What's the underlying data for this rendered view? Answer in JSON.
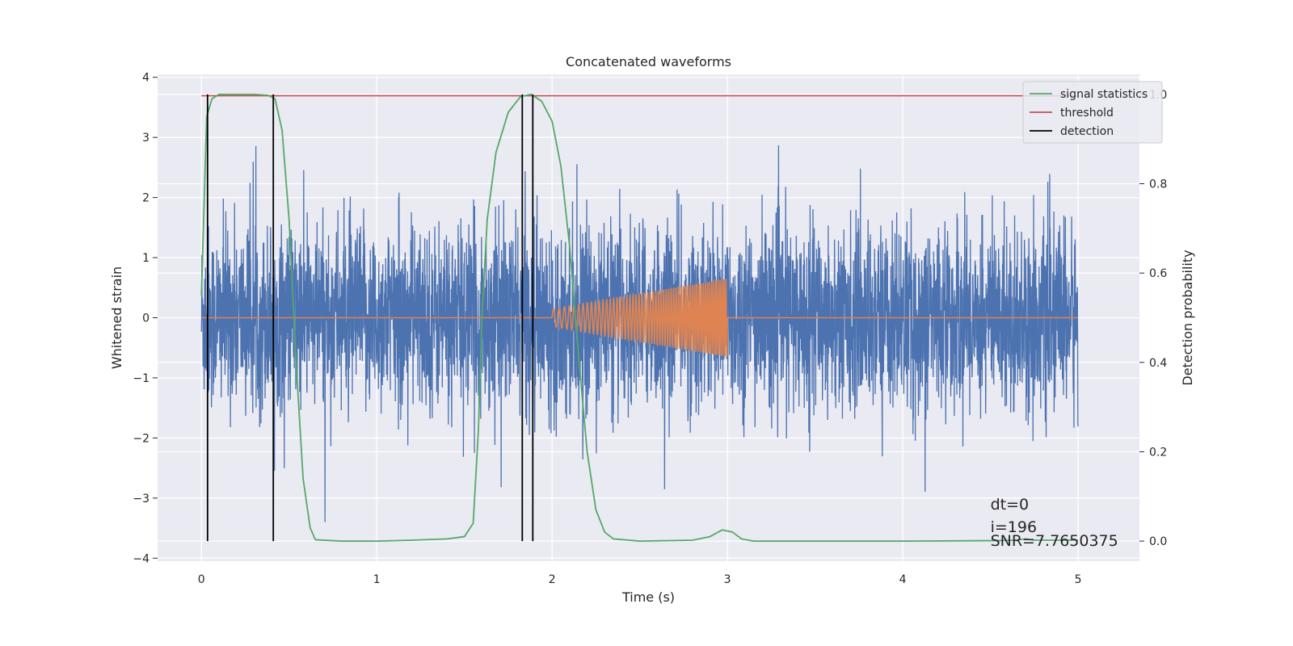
{
  "chart_data": {
    "type": "line",
    "title": "Concatenated waveforms",
    "xlabel": "Time (s)",
    "ylabel_left": "Whitened strain",
    "ylabel_right": "Detection probability",
    "xlim": [
      -0.25,
      5.35
    ],
    "ylim_left": [
      -4.05,
      4.05
    ],
    "ylim_right": [
      -0.045,
      1.045
    ],
    "x_ticks": [
      "0",
      "1",
      "2",
      "3",
      "4",
      "5"
    ],
    "y_left_ticks": [
      "4",
      "3",
      "2",
      "1",
      "0",
      "−1",
      "−2",
      "−3",
      "−4"
    ],
    "y_right_ticks": [
      "1.0",
      "0.8",
      "0.6",
      "0.4",
      "0.2",
      "0.0"
    ],
    "grid": true,
    "legend_position": "upper right",
    "colors": {
      "background": "#eaeaf2",
      "noise": "#4c72b0",
      "injected": "#dd8452",
      "signal_statistics": "#55a868",
      "threshold": "#c44e52",
      "detection": "#000000"
    },
    "series": [
      {
        "name": "",
        "axis": "left",
        "description_values": "whitened noise strain, amplitude ~ ±2.5, spikes to ±3.5, x from 0 to 5",
        "x_range": [
          0,
          5
        ],
        "amplitude_std": 0.75
      },
      {
        "name": "",
        "axis": "left",
        "kind": "chirp",
        "x_range": [
          2.0,
          3.0
        ],
        "amplitude_start": 0.15,
        "amplitude_end": 0.65
      },
      {
        "name": "signal statistics",
        "axis": "right",
        "x": [
          0,
          0.03,
          0.06,
          0.1,
          0.2,
          0.3,
          0.38,
          0.42,
          0.46,
          0.5,
          0.54,
          0.58,
          0.62,
          0.65,
          0.8,
          1.0,
          1.2,
          1.4,
          1.5,
          1.55,
          1.58,
          1.6,
          1.63,
          1.68,
          1.75,
          1.82,
          1.88,
          1.94,
          2.0,
          2.05,
          2.1,
          2.15,
          2.2,
          2.25,
          2.3,
          2.35,
          2.5,
          2.8,
          2.9,
          2.97,
          3.03,
          3.08,
          3.15,
          3.3,
          4.0,
          4.5,
          4.65,
          4.7,
          4.75,
          5.0
        ],
        "y": [
          0.55,
          0.95,
          0.99,
          1.0,
          1.0,
          1.0,
          0.998,
          0.99,
          0.92,
          0.72,
          0.4,
          0.14,
          0.03,
          0.003,
          0.0,
          0.0,
          0.002,
          0.005,
          0.01,
          0.04,
          0.25,
          0.5,
          0.72,
          0.87,
          0.96,
          0.995,
          1.0,
          0.985,
          0.94,
          0.84,
          0.66,
          0.42,
          0.2,
          0.07,
          0.02,
          0.005,
          0.0,
          0.002,
          0.01,
          0.025,
          0.02,
          0.005,
          0.0,
          0.0,
          0.0,
          0.001,
          0.002,
          0.005,
          0.002,
          0.002
        ]
      },
      {
        "name": "threshold",
        "axis": "right",
        "x": [
          0,
          5
        ],
        "y": [
          0.997,
          0.997
        ]
      },
      {
        "name": "detection",
        "axis": "right",
        "kind": "vlines",
        "x": [
          0.035,
          0.41,
          1.83,
          1.89
        ],
        "ymin": 0.0,
        "ymax": 1.0
      }
    ],
    "legend": [
      "signal statistics",
      "threshold",
      "detection"
    ],
    "annotations": [
      "dt=0",
      "i=196",
      "SNR=7.7650375"
    ]
  }
}
